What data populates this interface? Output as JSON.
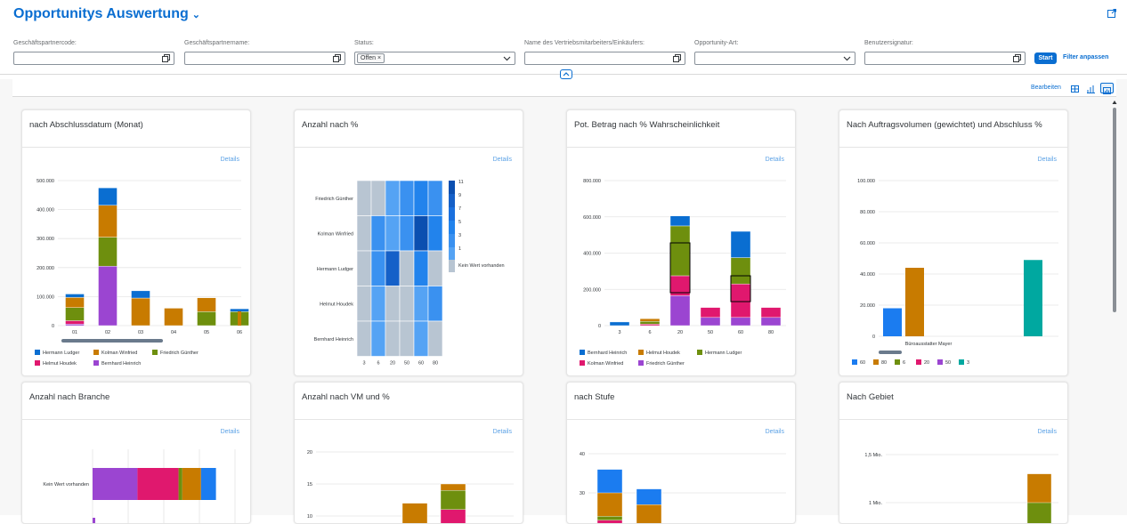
{
  "header": {
    "title": "Opportunitys Auswertung",
    "filters": [
      {
        "label": "Geschäftspartnercode:",
        "value": ""
      },
      {
        "label": "Geschäftspartnername:",
        "value": ""
      },
      {
        "label": "Status:",
        "value": "",
        "token": "Offen"
      },
      {
        "label": "Name des Vertriebsmitarbeiters/Einkäufers:",
        "value": ""
      },
      {
        "label": "Opportunity-Art:",
        "value": ""
      },
      {
        "label": "Benutzersignatur:",
        "value": ""
      }
    ],
    "start_label": "Start",
    "adapt_filters_label": "Filter anpassen"
  },
  "toolbar": {
    "edit_label": "Bearbeiten"
  },
  "colors": {
    "blue": "#0a6ed1",
    "orange": "#c87b00",
    "green": "#6e8f0e",
    "magenta": "#e0186e",
    "purple": "#9b45d1",
    "brightblue": "#1b7cf0",
    "teal": "#00a8a0",
    "accent": "#0a6ed1"
  },
  "cards": [
    {
      "title": "nach Abschlussdatum (Monat)",
      "details": "Details"
    },
    {
      "title": "Anzahl nach %",
      "details": "Details"
    },
    {
      "title": "Pot. Betrag nach % Wahrscheinlichkeit",
      "details": "Details"
    },
    {
      "title": "Nach Auftragsvolumen (gewichtet) und Abschluss %",
      "details": "Details"
    },
    {
      "title": "Anzahl nach Branche",
      "details": "Details"
    },
    {
      "title": "Anzahl nach VM und %",
      "details": "Details"
    },
    {
      "title": "nach Stufe",
      "details": "Details"
    },
    {
      "title": "Nach Gebiet",
      "details": "Details"
    }
  ],
  "chart_data": [
    {
      "type": "bar",
      "stacked": true,
      "categories": [
        "01",
        "02",
        "03",
        "04",
        "05",
        "06"
      ],
      "yticks": [
        "0",
        "100.000",
        "200.000",
        "300.000",
        "400.000",
        "500.000"
      ],
      "ylim": [
        0,
        500000
      ],
      "series": [
        {
          "name": "Hermann Ludger",
          "color": "#0a6ed1",
          "values": [
            12000,
            60000,
            25000,
            0,
            0,
            10000
          ]
        },
        {
          "name": "Kolman Winfried",
          "color": "#c87b00",
          "values": [
            35000,
            110000,
            95000,
            60000,
            48000,
            0
          ]
        },
        {
          "name": "Friedrich Günther",
          "color": "#6e8f0e",
          "values": [
            45000,
            100000,
            0,
            0,
            48000,
            48000
          ]
        },
        {
          "name": "Helmut Houdek",
          "color": "#e0186e",
          "values": [
            12000,
            0,
            0,
            0,
            0,
            0
          ]
        },
        {
          "name": "Bernhard Heinrich",
          "color": "#9b45d1",
          "values": [
            5000,
            205000,
            0,
            0,
            0,
            0
          ]
        }
      ],
      "legend": "bottom"
    },
    {
      "type": "heatmap",
      "x": [
        "3",
        "6",
        "20",
        "50",
        "60",
        "80"
      ],
      "y": [
        "Friedrich Günther",
        "Kolman Winfried",
        "Hermann Ludger",
        "Helmut Houdek",
        "Bernhard Heinrich"
      ],
      "values": [
        [
          null,
          null,
          1,
          2,
          3,
          2
        ],
        [
          null,
          2,
          1,
          2,
          11,
          3
        ],
        [
          null,
          2,
          9,
          null,
          3,
          null
        ],
        [
          null,
          1,
          null,
          null,
          1,
          2
        ],
        [
          null,
          1,
          null,
          null,
          1,
          null
        ]
      ],
      "scale_labels": [
        "11",
        "9",
        "7",
        "5",
        "3",
        "1"
      ],
      "no_value_label": "Kein Wert vorhanden"
    },
    {
      "type": "bar",
      "stacked": true,
      "categories": [
        "3",
        "6",
        "20",
        "50",
        "60",
        "80"
      ],
      "yticks": [
        "0",
        "200.000",
        "400.000",
        "600.000",
        "800.000"
      ],
      "ylim": [
        0,
        800000
      ],
      "series": [
        {
          "name": "Bernhard Heinrich",
          "color": "#0a6ed1",
          "values": [
            20000,
            0,
            55000,
            0,
            145000,
            0
          ]
        },
        {
          "name": "Helmut Houdek",
          "color": "#c87b00",
          "values": [
            0,
            15000,
            0,
            0,
            0,
            0
          ]
        },
        {
          "name": "Hermann Ludger",
          "color": "#6e8f0e",
          "values": [
            0,
            15000,
            275000,
            0,
            145000,
            0
          ]
        },
        {
          "name": "Kolman Winfried",
          "color": "#e0186e",
          "values": [
            0,
            8000,
            110000,
            55000,
            185000,
            55000
          ]
        },
        {
          "name": "Friedrich Günther",
          "color": "#9b45d1",
          "values": [
            0,
            0,
            165000,
            45000,
            45000,
            45000
          ]
        }
      ],
      "legend": "bottom"
    },
    {
      "type": "bar",
      "categories": [
        "Büroausstatter Mayer"
      ],
      "yticks": [
        "0",
        "20.000",
        "40.000",
        "60.000",
        "80.000",
        "100.000"
      ],
      "ylim": [
        0,
        100000
      ],
      "series": [
        {
          "name": "60",
          "color": "#1b7cf0",
          "values": [
            18000
          ]
        },
        {
          "name": "80",
          "color": "#c87b00",
          "values": [
            44000
          ]
        },
        {
          "name": "6",
          "color": "#6e8f0e",
          "values": [
            0
          ]
        },
        {
          "name": "20",
          "color": "#e0186e",
          "values": [
            0
          ]
        },
        {
          "name": "50",
          "color": "#9b45d1",
          "values": [
            0
          ]
        },
        {
          "name": "3",
          "color": "#00a8a0",
          "values": [
            49000
          ]
        }
      ],
      "legend": "bottom"
    },
    {
      "type": "bar",
      "orientation": "horizontal",
      "stacked": true,
      "categories": [
        "Kein Wert vorhanden"
      ],
      "series": [
        {
          "color": "#9b45d1",
          "values": [
            12
          ]
        },
        {
          "color": "#e0186e",
          "values": [
            11
          ]
        },
        {
          "color": "#6e8f0e",
          "values": [
            1
          ]
        },
        {
          "color": "#c87b00",
          "values": [
            5
          ]
        },
        {
          "color": "#1b7cf0",
          "values": [
            4
          ]
        }
      ]
    },
    {
      "type": "bar",
      "stacked": true,
      "yticks": [
        "10",
        "15",
        "20"
      ],
      "series": [
        {
          "color": "#c87b00",
          "values": [
            12,
            15
          ]
        },
        {
          "color": "#6e8f0e",
          "values": [
            0,
            14
          ]
        },
        {
          "color": "#e0186e",
          "values": [
            0,
            11
          ]
        }
      ]
    },
    {
      "type": "bar",
      "stacked": true,
      "yticks": [
        "30",
        "40"
      ],
      "series": [
        {
          "color": "#1b7cf0",
          "values": [
            36,
            31
          ]
        },
        {
          "color": "#c87b00",
          "values": [
            30,
            27
          ]
        },
        {
          "color": "#6e8f0e",
          "values": [
            24,
            0
          ]
        },
        {
          "color": "#e0186e",
          "values": [
            23,
            0
          ]
        }
      ]
    },
    {
      "type": "bar",
      "stacked": true,
      "yticks": [
        "1 Mio.",
        "1,5 Mio."
      ],
      "series": [
        {
          "color": "#c87b00",
          "values": [
            1300000
          ]
        },
        {
          "color": "#6e8f0e",
          "values": [
            1000000
          ]
        }
      ]
    }
  ]
}
